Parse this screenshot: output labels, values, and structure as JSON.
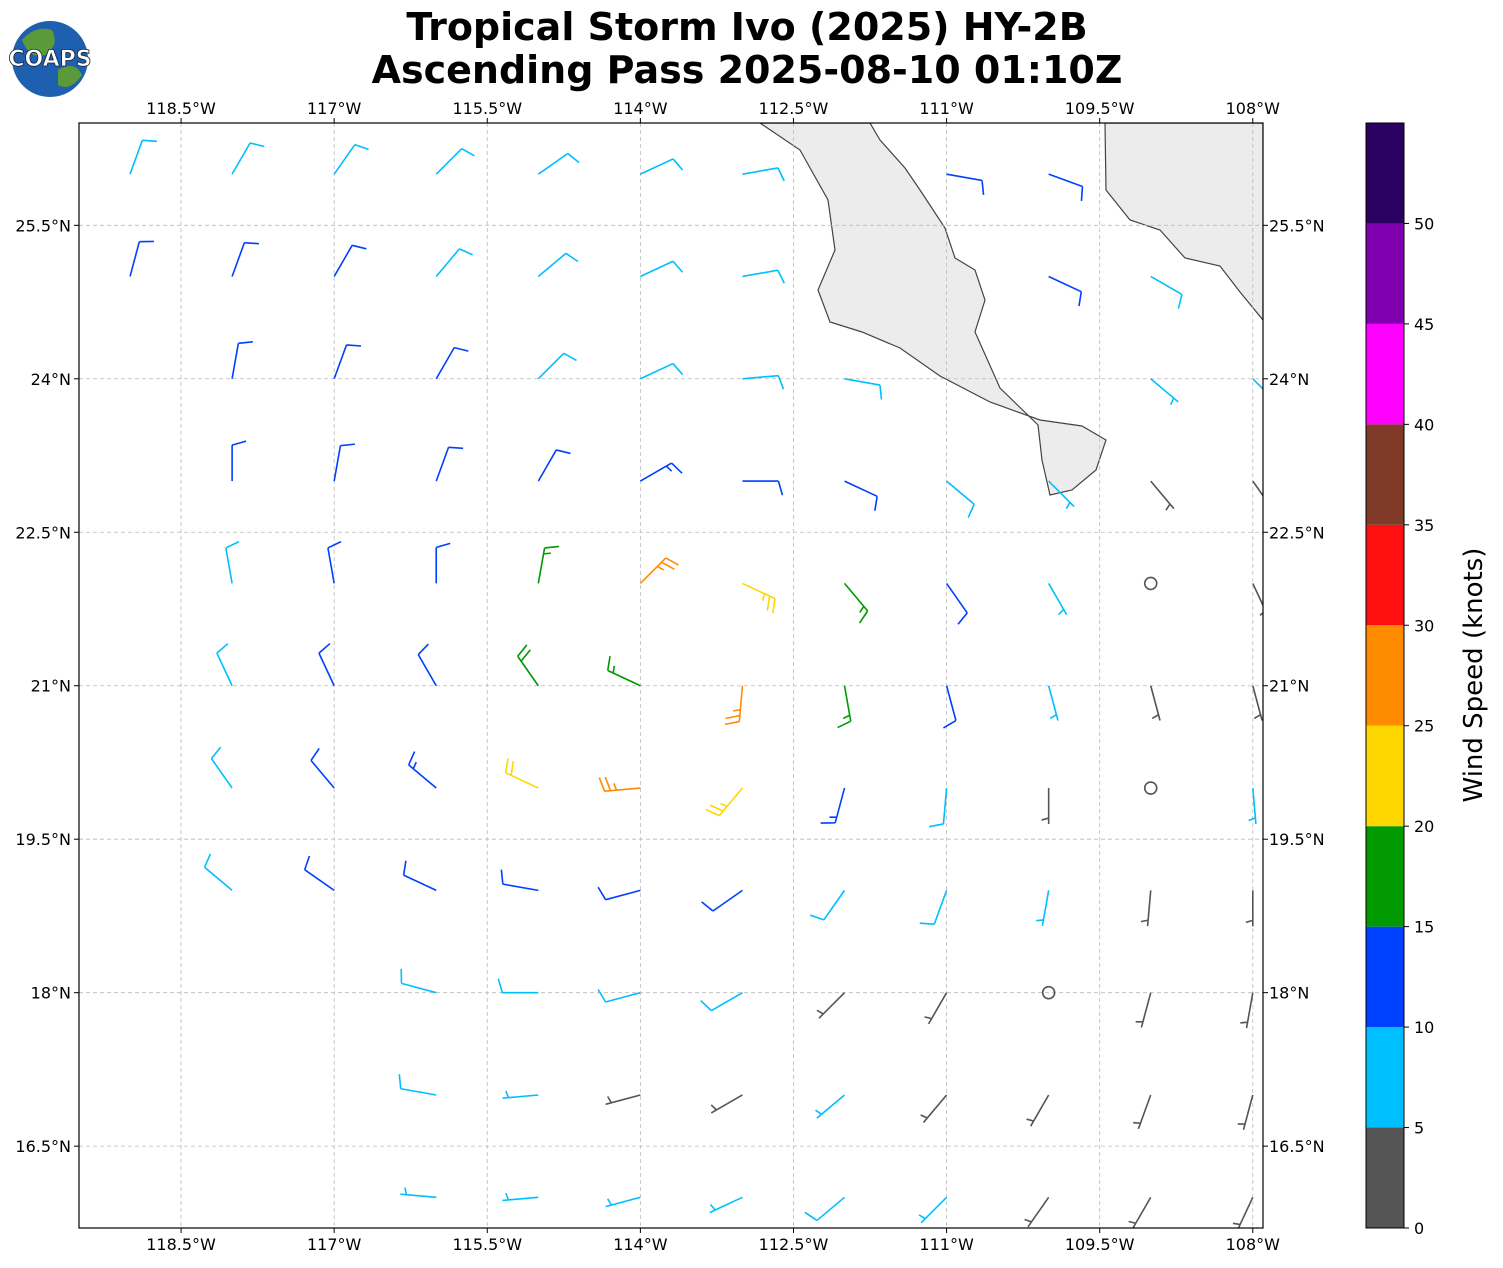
{
  "chart_data": {
    "type": "barbs",
    "title": "Tropical Storm Ivo (2025) HY-2B",
    "subtitle": "Ascending Pass 2025-08-10 01:10Z",
    "logo": "COAPS",
    "xlim": [
      -119.5,
      -107.9
    ],
    "ylim": [
      15.7,
      26.5
    ],
    "xticks": [
      {
        "value": -118.5,
        "label": "118.5°W"
      },
      {
        "value": -117,
        "label": "117°W"
      },
      {
        "value": -115.5,
        "label": "115.5°W"
      },
      {
        "value": -114,
        "label": "114°W"
      },
      {
        "value": -112.5,
        "label": "112.5°W"
      },
      {
        "value": -111,
        "label": "111°W"
      },
      {
        "value": -109.5,
        "label": "109.5°W"
      },
      {
        "value": -108,
        "label": "108°W"
      }
    ],
    "yticks": [
      {
        "value": 16.5,
        "label": "16.5°N"
      },
      {
        "value": 18,
        "label": "18°N"
      },
      {
        "value": 19.5,
        "label": "19.5°N"
      },
      {
        "value": 21,
        "label": "21°N"
      },
      {
        "value": 22.5,
        "label": "22.5°N"
      },
      {
        "value": 24,
        "label": "24°N"
      },
      {
        "value": 25.5,
        "label": "25.5°N"
      }
    ],
    "grid": true,
    "barbs": {
      "lon": [
        -119,
        -118,
        -117,
        -116,
        -115,
        -114,
        -113,
        -111,
        -110,
        -119,
        -118,
        -117,
        -116,
        -115,
        -114,
        -113,
        -110,
        -109,
        -118,
        -117,
        -116,
        -115,
        -114,
        -113,
        -112,
        -109,
        -108,
        -118,
        -117,
        -116,
        -115,
        -114,
        -113,
        -112,
        -111,
        -110,
        -109,
        -108,
        -118,
        -117,
        -116,
        -115,
        -114,
        -113,
        -112,
        -111,
        -110,
        -109,
        -108,
        -118,
        -117,
        -116,
        -115,
        -114,
        -113,
        -112,
        -111,
        -110,
        -109,
        -108,
        -118,
        -117,
        -116,
        -115,
        -114,
        -113,
        -112,
        -111,
        -110,
        -109,
        -108,
        -118,
        -117,
        -116,
        -115,
        -114,
        -113,
        -112,
        -111,
        -110,
        -109,
        -108,
        -116,
        -115,
        -114,
        -113,
        -112,
        -111,
        -110,
        -109,
        -108,
        -116,
        -115,
        -114,
        -113,
        -112,
        -111,
        -110,
        -109,
        -108,
        -116,
        -115,
        -114,
        -113,
        -112,
        -111,
        -110,
        -109,
        -108
      ],
      "lat": [
        26,
        26,
        26,
        26,
        26,
        26,
        26,
        26,
        26,
        25,
        25,
        25,
        25,
        25,
        25,
        25,
        25,
        25,
        24,
        24,
        24,
        24,
        24,
        24,
        24,
        24,
        24,
        23,
        23,
        23,
        23,
        23,
        23,
        23,
        23,
        23,
        23,
        23,
        22,
        22,
        22,
        22,
        22,
        22,
        22,
        22,
        22,
        22,
        22,
        21,
        21,
        21,
        21,
        21,
        21,
        21,
        21,
        21,
        21,
        21,
        20,
        20,
        20,
        20,
        20,
        20,
        20,
        20,
        20,
        20,
        20,
        19,
        19,
        19,
        19,
        19,
        19,
        19,
        19,
        19,
        19,
        19,
        18,
        18,
        18,
        18,
        18,
        18,
        18,
        18,
        18,
        17,
        17,
        17,
        17,
        17,
        17,
        17,
        17,
        17,
        16,
        16,
        16,
        16,
        16,
        16,
        16,
        16,
        16
      ],
      "speed": [
        9,
        9,
        8,
        8,
        8,
        8,
        8,
        12,
        12,
        11,
        11,
        10,
        9,
        9,
        8,
        8,
        11,
        8,
        11,
        11,
        10,
        9,
        9,
        9,
        8,
        7,
        6,
        10,
        11,
        12,
        12,
        14,
        12,
        10,
        8,
        6,
        3,
        3,
        9,
        11,
        12,
        17,
        26,
        24,
        16,
        10,
        7,
        2,
        3,
        9,
        11,
        12,
        18,
        15,
        26,
        15,
        10,
        6,
        3,
        4,
        8,
        11,
        13,
        20,
        26,
        24,
        14,
        9,
        4,
        2,
        6,
        8,
        10,
        12,
        12,
        11,
        11,
        9,
        8,
        5,
        3,
        3,
        9,
        9,
        8,
        8,
        4,
        4,
        2,
        3,
        4,
        8,
        7,
        4,
        4,
        6,
        3,
        3,
        4,
        3,
        7,
        7,
        6,
        6,
        8,
        7,
        4,
        3,
        3
      ],
      "direction": [
        20,
        30,
        35,
        45,
        55,
        65,
        80,
        100,
        110,
        15,
        20,
        30,
        40,
        50,
        65,
        80,
        115,
        120,
        10,
        20,
        30,
        45,
        65,
        85,
        100,
        130,
        135,
        0,
        10,
        20,
        30,
        60,
        90,
        115,
        130,
        135,
        140,
        145,
        350,
        350,
        0,
        10,
        45,
        115,
        140,
        145,
        150,
        150,
        155,
        335,
        335,
        330,
        325,
        295,
        185,
        170,
        165,
        165,
        165,
        165,
        325,
        320,
        310,
        295,
        265,
        220,
        195,
        185,
        180,
        175,
        175,
        310,
        305,
        295,
        280,
        255,
        235,
        215,
        200,
        190,
        185,
        180,
        285,
        270,
        255,
        240,
        225,
        210,
        200,
        195,
        190,
        280,
        265,
        255,
        240,
        230,
        220,
        210,
        200,
        195,
        275,
        265,
        255,
        245,
        230,
        225,
        215,
        210,
        205
      ]
    },
    "colorbar": {
      "label": "Wind Speed (knots)",
      "bounds": [
        0,
        5,
        10,
        15,
        20,
        25,
        30,
        35,
        40,
        45,
        50,
        55
      ],
      "colors": [
        "#555555",
        "#00bfff",
        "#0040ff",
        "#009900",
        "#ffd700",
        "#ff8c00",
        "#ff1010",
        "#7f3a28",
        "#ff00ff",
        "#8000b0",
        "#2a0060"
      ],
      "ticks": [
        0,
        5,
        10,
        15,
        20,
        25,
        30,
        35,
        40,
        45,
        50
      ]
    }
  }
}
